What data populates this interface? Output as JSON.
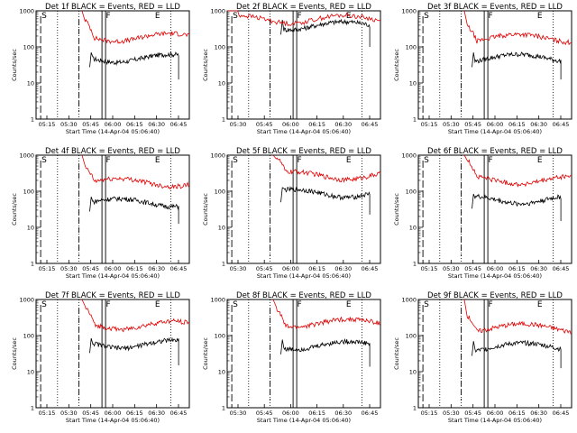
{
  "figure": {
    "xlabel": "Start Time (14-Apr-04 05:06:40)",
    "ylabel": "Counts/sec",
    "y_ticks": [
      "1",
      "10",
      "100",
      "1000"
    ],
    "x_ticks_a": [
      "05:15",
      "05:30",
      "05:45",
      "06:00",
      "06:15",
      "06:30",
      "06:45"
    ],
    "x_ticks_b": [
      "05:30",
      "05:45",
      "06:00",
      "06:15",
      "06:30",
      "06:45"
    ],
    "colors": {
      "events": "#000000",
      "lld": "#e00000",
      "background": "#ffffff"
    }
  },
  "chart_data": [
    {
      "type": "line",
      "title": "Det 1f BLACK = Events, RED = LLD",
      "x_ticks": "a",
      "y_scale": "log",
      "ylim": [
        1,
        1000
      ],
      "markers": [
        "S",
        "F",
        "E"
      ],
      "series": [
        {
          "name": "Events",
          "level": 50,
          "start": 0.35,
          "end": 0.93
        },
        {
          "name": "LLD",
          "level": 190,
          "start": 0.3,
          "end": 1.0
        }
      ]
    },
    {
      "type": "line",
      "title": "Det 2f BLACK = Events, RED = LLD",
      "x_ticks": "b",
      "y_scale": "log",
      "ylim": [
        1,
        1000
      ],
      "markers": [
        "S",
        "F",
        "E"
      ],
      "series": [
        {
          "name": "Events",
          "level": 400,
          "start": 0.35,
          "end": 0.93
        },
        {
          "name": "LLD",
          "level": 600,
          "start": 0.0,
          "end": 1.0
        }
      ]
    },
    {
      "type": "line",
      "title": "Det 3f BLACK = Events, RED = LLD",
      "x_ticks": "a",
      "y_scale": "log",
      "ylim": [
        1,
        1000
      ],
      "markers": [
        "S",
        "F",
        "E"
      ],
      "series": [
        {
          "name": "Events",
          "level": 50,
          "start": 0.35,
          "end": 0.93
        },
        {
          "name": "LLD",
          "level": 180,
          "start": 0.3,
          "end": 1.0
        }
      ]
    },
    {
      "type": "line",
      "title": "Det 4f BLACK = Events, RED = LLD",
      "x_ticks": "a",
      "y_scale": "log",
      "ylim": [
        1,
        1000
      ],
      "markers": [
        "S",
        "F",
        "E"
      ],
      "series": [
        {
          "name": "Events",
          "level": 50,
          "start": 0.35,
          "end": 0.93
        },
        {
          "name": "LLD",
          "level": 180,
          "start": 0.3,
          "end": 1.0
        }
      ]
    },
    {
      "type": "line",
      "title": "Det 5f BLACK = Events, RED = LLD",
      "x_ticks": "b",
      "y_scale": "log",
      "ylim": [
        1,
        1000
      ],
      "markers": [
        "S",
        "F",
        "E"
      ],
      "series": [
        {
          "name": "Events",
          "level": 90,
          "start": 0.35,
          "end": 0.93
        },
        {
          "name": "LLD",
          "level": 280,
          "start": 0.3,
          "end": 1.0
        }
      ]
    },
    {
      "type": "line",
      "title": "Det 6f BLACK = Events, RED = LLD",
      "x_ticks": "a",
      "y_scale": "log",
      "ylim": [
        1,
        1000
      ],
      "markers": [
        "S",
        "F",
        "E"
      ],
      "series": [
        {
          "name": "Events",
          "level": 60,
          "start": 0.35,
          "end": 0.93
        },
        {
          "name": "LLD",
          "level": 210,
          "start": 0.3,
          "end": 1.0
        }
      ]
    },
    {
      "type": "line",
      "title": "Det 7f BLACK = Events, RED = LLD",
      "x_ticks": "a",
      "y_scale": "log",
      "ylim": [
        1,
        1000
      ],
      "markers": [
        "S",
        "F",
        "E"
      ],
      "series": [
        {
          "name": "Events",
          "level": 60,
          "start": 0.35,
          "end": 0.93
        },
        {
          "name": "LLD",
          "level": 200,
          "start": 0.3,
          "end": 1.0
        }
      ]
    },
    {
      "type": "line",
      "title": "Det 8f BLACK = Events, RED = LLD",
      "x_ticks": "b",
      "y_scale": "log",
      "ylim": [
        1,
        1000
      ],
      "markers": [
        "S",
        "F",
        "E"
      ],
      "series": [
        {
          "name": "Events",
          "level": 55,
          "start": 0.35,
          "end": 0.93
        },
        {
          "name": "LLD",
          "level": 230,
          "start": 0.3,
          "end": 1.0
        }
      ]
    },
    {
      "type": "line",
      "title": "Det 9f BLACK = Events, RED = LLD",
      "x_ticks": "a",
      "y_scale": "log",
      "ylim": [
        1,
        1000
      ],
      "markers": [
        "S",
        "F",
        "E"
      ],
      "series": [
        {
          "name": "Events",
          "level": 50,
          "start": 0.35,
          "end": 0.93
        },
        {
          "name": "LLD",
          "level": 170,
          "start": 0.3,
          "end": 1.0
        }
      ]
    }
  ]
}
